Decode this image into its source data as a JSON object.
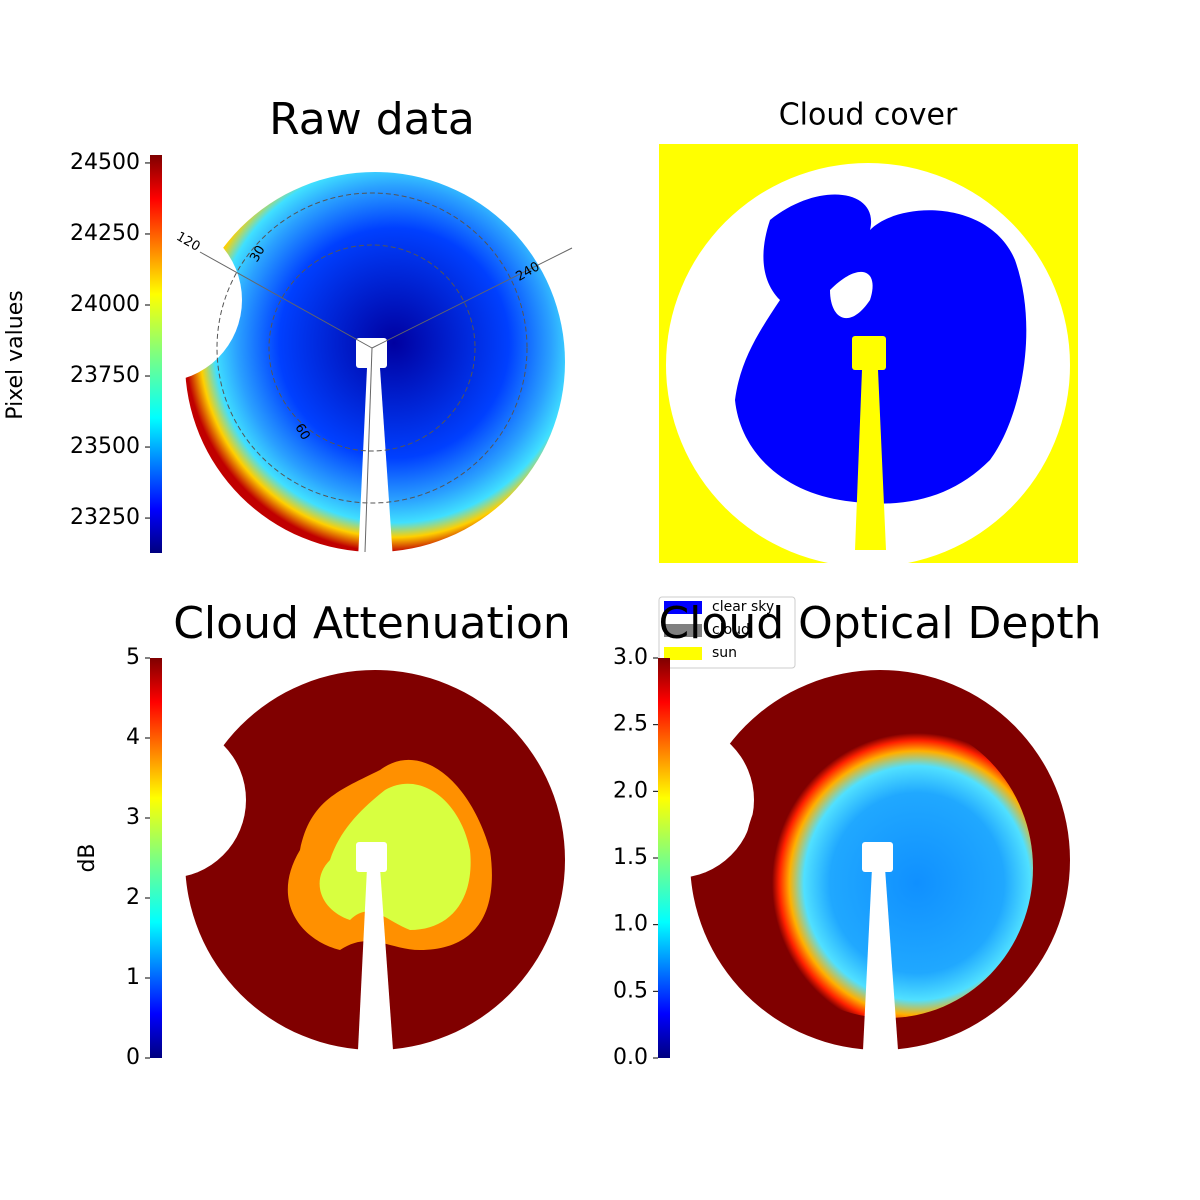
{
  "chart_data": [
    {
      "type": "image",
      "title": "Raw data",
      "colorbar_label": "Pixel values",
      "ylim": [
        23127,
        24528
      ],
      "yticks": [
        23250,
        23500,
        23750,
        24000,
        24250,
        24500
      ],
      "colormap": "jet",
      "annotations": [
        "120",
        "30",
        "240",
        "60"
      ]
    },
    {
      "type": "image",
      "title": "Cloud cover",
      "series": [
        {
          "name": "clear sky",
          "color": "#0000ff"
        },
        {
          "name": "cloud",
          "color": "#808080"
        },
        {
          "name": "sun",
          "color": "#ffff00"
        }
      ]
    },
    {
      "type": "image",
      "title": "Cloud Attenuation",
      "colorbar_label": "dB",
      "ylim": [
        0,
        5
      ],
      "yticks": [
        0,
        1,
        2,
        3,
        4,
        5
      ],
      "colormap": "jet"
    },
    {
      "type": "image",
      "title": "Cloud Optical Depth",
      "ylim": [
        0,
        3
      ],
      "yticks": [
        {
          "value": 0,
          "label": "0.0"
        },
        0.5,
        {
          "value": 1,
          "label": "1.0"
        },
        1.5,
        {
          "value": 2,
          "label": "2.0"
        },
        2.5,
        {
          "value": 3,
          "label": "3.0"
        }
      ],
      "colormap": "jet"
    }
  ]
}
